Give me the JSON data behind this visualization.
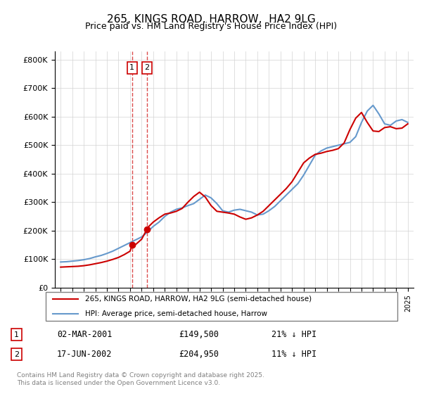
{
  "title": "265, KINGS ROAD, HARROW,  HA2 9LG",
  "subtitle": "Price paid vs. HM Land Registry's House Price Index (HPI)",
  "legend_line1": "265, KINGS ROAD, HARROW, HA2 9LG (semi-detached house)",
  "legend_line2": "HPI: Average price, semi-detached house, Harrow",
  "sale1_label": "1",
  "sale1_date": "02-MAR-2001",
  "sale1_price": 149500,
  "sale1_year": 2001.17,
  "sale1_pct": "21% ↓ HPI",
  "sale2_label": "2",
  "sale2_date": "17-JUN-2002",
  "sale2_price": 204950,
  "sale2_year": 2002.46,
  "sale2_pct": "11% ↓ HPI",
  "footer": "Contains HM Land Registry data © Crown copyright and database right 2025.\nThis data is licensed under the Open Government Licence v3.0.",
  "red_color": "#cc0000",
  "blue_color": "#6699cc",
  "ylim": [
    0,
    830000
  ],
  "yticks": [
    0,
    100000,
    200000,
    300000,
    400000,
    500000,
    600000,
    700000,
    800000
  ],
  "ytick_labels": [
    "£0",
    "£100K",
    "£200K",
    "£300K",
    "£400K",
    "£500K",
    "£600K",
    "£700K",
    "£800K"
  ],
  "hpi_years": [
    1995,
    1995.5,
    1996,
    1996.5,
    1997,
    1997.5,
    1998,
    1998.5,
    1999,
    1999.5,
    2000,
    2000.5,
    2001,
    2001.5,
    2002,
    2002.5,
    2003,
    2003.5,
    2004,
    2004.5,
    2005,
    2005.5,
    2006,
    2006.5,
    2007,
    2007.5,
    2008,
    2008.5,
    2009,
    2009.5,
    2010,
    2010.5,
    2011,
    2011.5,
    2012,
    2012.5,
    2013,
    2013.5,
    2014,
    2014.5,
    2015,
    2015.5,
    2016,
    2016.5,
    2017,
    2017.5,
    2018,
    2018.5,
    2019,
    2019.5,
    2020,
    2020.5,
    2021,
    2021.5,
    2022,
    2022.5,
    2023,
    2023.5,
    2024,
    2024.5,
    2025
  ],
  "hpi_values": [
    90000,
    91000,
    93000,
    95000,
    98000,
    102000,
    108000,
    113000,
    120000,
    128000,
    138000,
    148000,
    158000,
    168000,
    178000,
    195000,
    215000,
    230000,
    250000,
    265000,
    275000,
    280000,
    288000,
    295000,
    310000,
    325000,
    315000,
    295000,
    270000,
    265000,
    272000,
    275000,
    270000,
    265000,
    255000,
    258000,
    270000,
    285000,
    305000,
    325000,
    345000,
    365000,
    395000,
    430000,
    465000,
    480000,
    490000,
    495000,
    500000,
    505000,
    510000,
    530000,
    580000,
    620000,
    640000,
    610000,
    575000,
    570000,
    585000,
    590000,
    580000
  ],
  "red_years": [
    1995,
    1995.5,
    1996,
    1996.5,
    1997,
    1997.5,
    1998,
    1998.5,
    1999,
    1999.5,
    2000,
    2000.5,
    2001,
    2001.17,
    2001.5,
    2002,
    2002.46,
    2002.5,
    2003,
    2003.5,
    2004,
    2004.5,
    2005,
    2005.5,
    2006,
    2006.5,
    2007,
    2007.5,
    2008,
    2008.5,
    2009,
    2009.5,
    2010,
    2010.5,
    2011,
    2011.5,
    2012,
    2012.5,
    2013,
    2013.5,
    2014,
    2014.5,
    2015,
    2015.5,
    2016,
    2016.5,
    2017,
    2017.5,
    2018,
    2018.5,
    2019,
    2019.5,
    2020,
    2020.5,
    2021,
    2021.5,
    2022,
    2022.5,
    2023,
    2023.5,
    2024,
    2024.5,
    2025
  ],
  "red_values": [
    72000,
    73000,
    74000,
    75000,
    77000,
    80000,
    84000,
    88000,
    93000,
    99000,
    106000,
    116000,
    128000,
    149500,
    152000,
    170000,
    204950,
    210000,
    230000,
    245000,
    258000,
    262000,
    268000,
    278000,
    300000,
    320000,
    335000,
    318000,
    288000,
    268000,
    265000,
    262000,
    258000,
    248000,
    240000,
    245000,
    255000,
    268000,
    288000,
    308000,
    328000,
    348000,
    372000,
    405000,
    438000,
    455000,
    468000,
    472000,
    478000,
    482000,
    488000,
    508000,
    555000,
    595000,
    615000,
    580000,
    550000,
    548000,
    562000,
    565000,
    558000,
    560000,
    575000
  ]
}
